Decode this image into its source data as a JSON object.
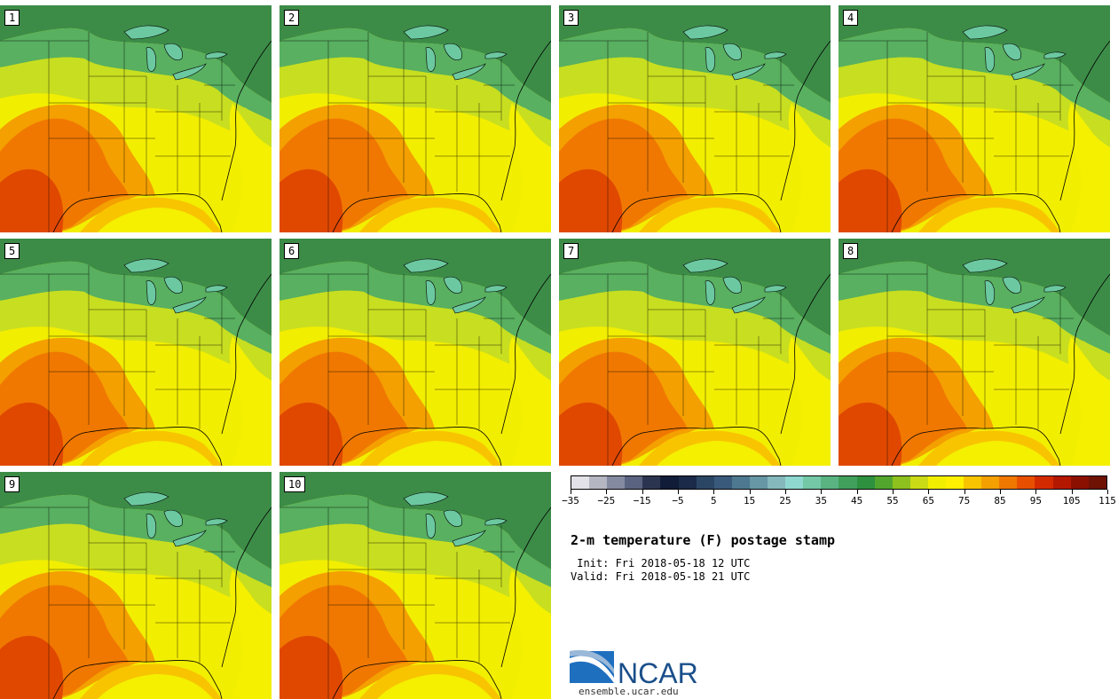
{
  "panels": [
    {
      "label": "1"
    },
    {
      "label": "2"
    },
    {
      "label": "3"
    },
    {
      "label": "4"
    },
    {
      "label": "5"
    },
    {
      "label": "6"
    },
    {
      "label": "7"
    },
    {
      "label": "8"
    },
    {
      "label": "9"
    },
    {
      "label": "10"
    }
  ],
  "colorbar": {
    "colors": [
      "#e2e2e8",
      "#b4b6c2",
      "#848aa0",
      "#5a6480",
      "#2c3550",
      "#101c38",
      "#1a2a48",
      "#2a4664",
      "#3a5a7c",
      "#4e7890",
      "#6796a4",
      "#85b8bc",
      "#8ed8d0",
      "#74c8a6",
      "#5ab482",
      "#40a05c",
      "#2e9140",
      "#52a62e",
      "#8ec01e",
      "#cada14",
      "#f2ee00",
      "#fef000",
      "#f8c400",
      "#f4a000",
      "#f07800",
      "#e85000",
      "#d42a00",
      "#b41800",
      "#8c1000",
      "#6e1204"
    ],
    "tick_labels": [
      "−35",
      "−25",
      "−15",
      "−5",
      "5",
      "15",
      "25",
      "35",
      "45",
      "55",
      "65",
      "75",
      "85",
      "95",
      "105",
      "115"
    ]
  },
  "title": "2-m temperature (F) postage stamp",
  "init": " Init: Fri 2018-05-18 12 UTC",
  "valid": "Valid: Fri 2018-05-18 21 UTC",
  "logo": {
    "text": "NCAR",
    "url": "ensemble.ucar.edu",
    "brand_color": "#1a4f8a"
  },
  "map_colors": {
    "green_dark": "#3c8c48",
    "green": "#58b060",
    "yellow_green": "#c8de20",
    "yellow": "#f4f000",
    "gold": "#f8c400",
    "orange": "#f08a00",
    "red": "#e04800",
    "lakes": "#6cc8a0"
  }
}
